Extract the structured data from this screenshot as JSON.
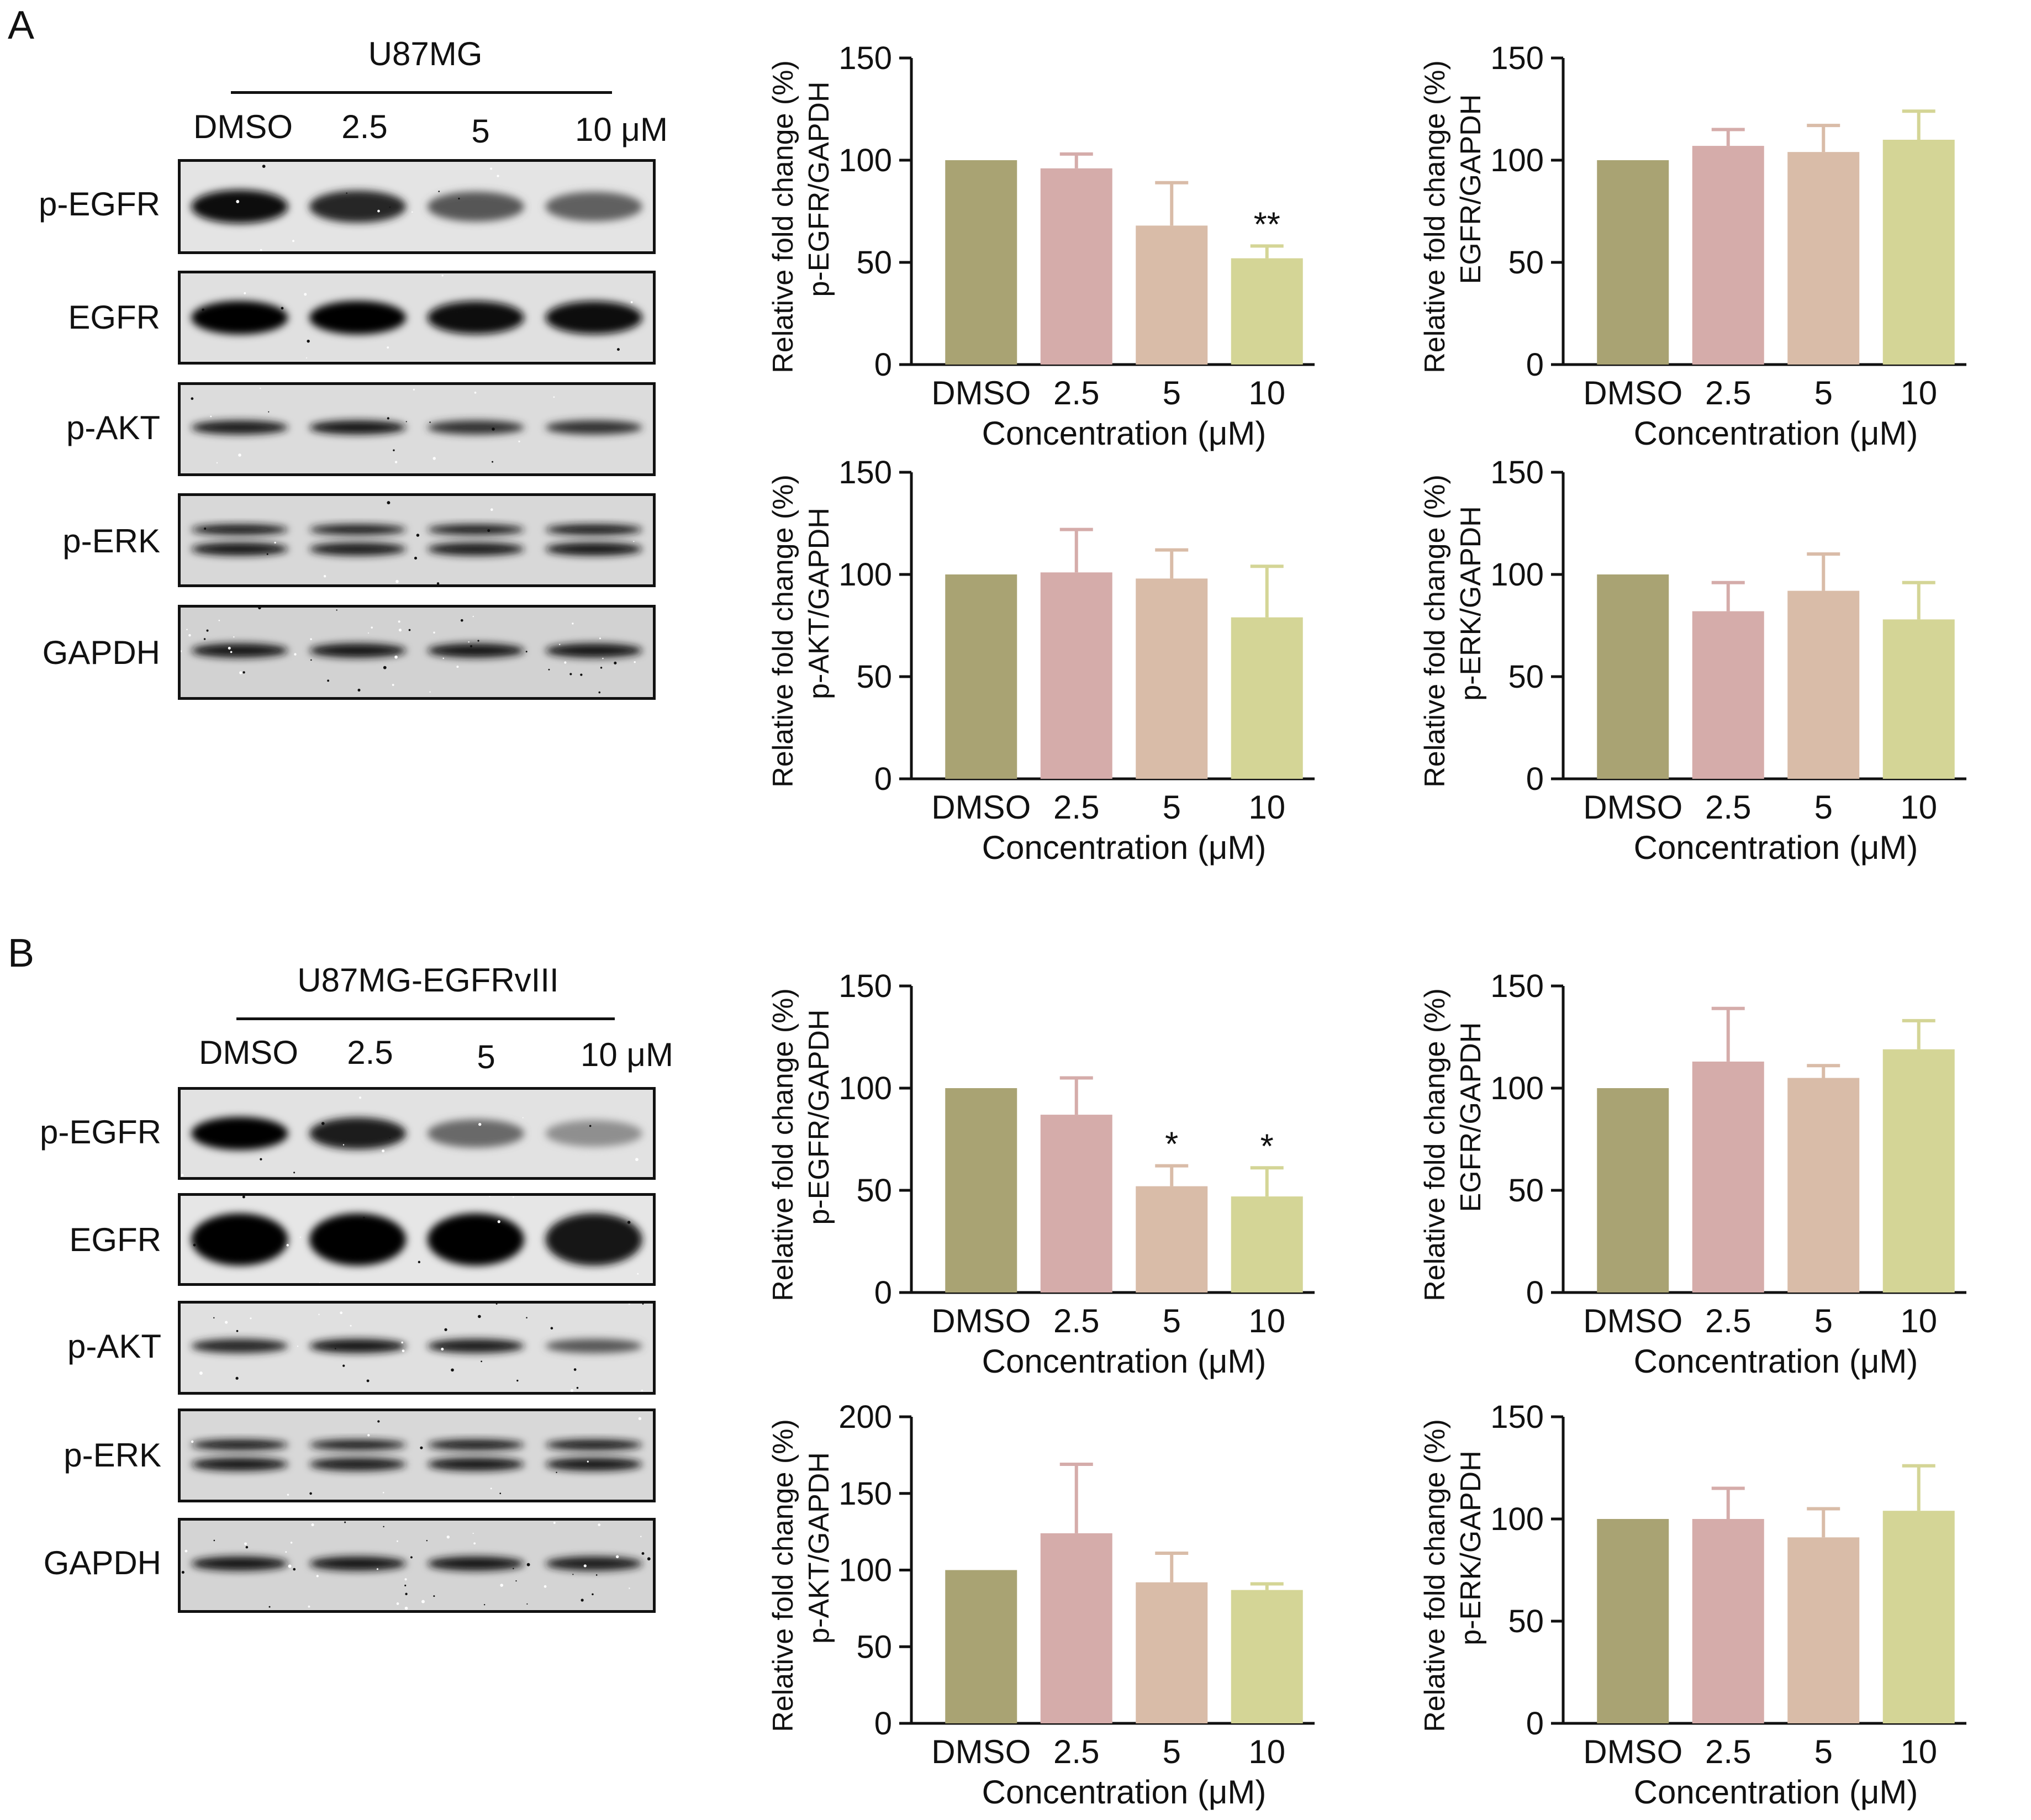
{
  "panels": [
    {
      "letter": "A",
      "cell_line": "U87MG",
      "lanes": [
        "DMSO",
        "2.5",
        "5",
        "10 μM"
      ],
      "blots": [
        {
          "label": "p-EGFR",
          "kind": "single",
          "intensity": [
            0.95,
            0.8,
            0.55,
            0.5
          ],
          "bg": "#e4e4e4",
          "noise": 0.02
        },
        {
          "label": "EGFR",
          "kind": "single",
          "intensity": [
            1.0,
            1.0,
            0.95,
            0.95
          ],
          "bg": "#e0e0e0",
          "noise": 0.02
        },
        {
          "label": "p-AKT",
          "kind": "single-thin",
          "intensity": [
            0.85,
            0.9,
            0.75,
            0.75
          ],
          "bg": "#dcdcdc",
          "noise": 0.03
        },
        {
          "label": "p-ERK",
          "kind": "double",
          "intensity": [
            0.9,
            0.85,
            0.85,
            0.9
          ],
          "bg": "#d8d8d8",
          "noise": 0.02
        },
        {
          "label": "GAPDH",
          "kind": "single-thin",
          "intensity": [
            0.9,
            0.9,
            0.9,
            0.9
          ],
          "bg": "#d2d2d2",
          "noise": 0.08
        }
      ]
    },
    {
      "letter": "B",
      "cell_line": "U87MG-EGFRvIII",
      "lanes": [
        "DMSO",
        "2.5",
        "5",
        "10 μM"
      ],
      "blots": [
        {
          "label": "p-EGFR",
          "kind": "single",
          "intensity": [
            1.0,
            0.85,
            0.45,
            0.25
          ],
          "bg": "#e2e2e2",
          "noise": 0.02
        },
        {
          "label": "EGFR",
          "kind": "blob",
          "intensity": [
            1.0,
            1.0,
            1.0,
            0.9
          ],
          "bg": "#e6e6e6",
          "noise": 0.02
        },
        {
          "label": "p-AKT",
          "kind": "single-thin",
          "intensity": [
            0.8,
            0.9,
            0.85,
            0.55
          ],
          "bg": "#e0e0e0",
          "noise": 0.05
        },
        {
          "label": "p-ERK",
          "kind": "double",
          "intensity": [
            0.9,
            0.85,
            0.9,
            0.9
          ],
          "bg": "#d8d8d8",
          "noise": 0.02
        },
        {
          "label": "GAPDH",
          "kind": "single-thin",
          "intensity": [
            0.9,
            0.9,
            0.9,
            0.85
          ],
          "bg": "#d4d4d4",
          "noise": 0.08
        }
      ]
    }
  ],
  "chart_data": [
    {
      "id": "A-pEGFR",
      "type": "bar",
      "categories": [
        "DMSO",
        "2.5",
        "5",
        "10"
      ],
      "values": [
        100,
        96,
        68,
        52
      ],
      "errors": [
        0,
        7,
        21,
        6
      ],
      "significance": [
        "",
        "",
        "",
        "**"
      ],
      "ylabel": [
        "Relative fold change (%)",
        "p-EGFR/GAPDH"
      ],
      "xlabel": "Concentration (μM)",
      "ylim": [
        0,
        150
      ],
      "yticks": [
        0,
        50,
        100,
        150
      ],
      "colors": [
        "#a9a373",
        "#d5acaa",
        "#d9bca8",
        "#d4d596"
      ]
    },
    {
      "id": "A-EGFR",
      "type": "bar",
      "categories": [
        "DMSO",
        "2.5",
        "5",
        "10"
      ],
      "values": [
        100,
        107,
        104,
        110
      ],
      "errors": [
        0,
        8,
        13,
        14
      ],
      "significance": [
        "",
        "",
        "",
        ""
      ],
      "ylabel": [
        "Relative fold change (%)",
        "EGFR/GAPDH"
      ],
      "xlabel": "Concentration (μM)",
      "ylim": [
        0,
        150
      ],
      "yticks": [
        0,
        50,
        100,
        150
      ],
      "colors": [
        "#a9a373",
        "#d5acaa",
        "#d9bca8",
        "#d4d596"
      ]
    },
    {
      "id": "A-pAKT",
      "type": "bar",
      "categories": [
        "DMSO",
        "2.5",
        "5",
        "10"
      ],
      "values": [
        100,
        101,
        98,
        79
      ],
      "errors": [
        0,
        21,
        14,
        25
      ],
      "significance": [
        "",
        "",
        "",
        ""
      ],
      "ylabel": [
        "Relative fold change (%)",
        "p-AKT/GAPDH"
      ],
      "xlabel": "Concentration (μM)",
      "ylim": [
        0,
        150
      ],
      "yticks": [
        0,
        50,
        100,
        150
      ],
      "colors": [
        "#a9a373",
        "#d5acaa",
        "#d9bca8",
        "#d4d596"
      ]
    },
    {
      "id": "A-pERK",
      "type": "bar",
      "categories": [
        "DMSO",
        "2.5",
        "5",
        "10"
      ],
      "values": [
        100,
        82,
        92,
        78
      ],
      "errors": [
        0,
        14,
        18,
        18
      ],
      "significance": [
        "",
        "",
        "",
        ""
      ],
      "ylabel": [
        "Relative fold change (%)",
        "p-ERK/GAPDH"
      ],
      "xlabel": "Concentration (μM)",
      "ylim": [
        0,
        150
      ],
      "yticks": [
        0,
        50,
        100,
        150
      ],
      "colors": [
        "#a9a373",
        "#d5acaa",
        "#d9bca8",
        "#d4d596"
      ]
    },
    {
      "id": "B-pEGFR",
      "type": "bar",
      "categories": [
        "DMSO",
        "2.5",
        "5",
        "10"
      ],
      "values": [
        100,
        87,
        52,
        47
      ],
      "errors": [
        0,
        18,
        10,
        14
      ],
      "significance": [
        "",
        "",
        "*",
        "*"
      ],
      "ylabel": [
        "Relative fold change (%)",
        "p-EGFR/GAPDH"
      ],
      "xlabel": "Concentration (μM)",
      "ylim": [
        0,
        150
      ],
      "yticks": [
        0,
        50,
        100,
        150
      ],
      "colors": [
        "#a9a373",
        "#d5acaa",
        "#d9bca8",
        "#d4d596"
      ]
    },
    {
      "id": "B-EGFR",
      "type": "bar",
      "categories": [
        "DMSO",
        "2.5",
        "5",
        "10"
      ],
      "values": [
        100,
        113,
        105,
        119
      ],
      "errors": [
        0,
        26,
        6,
        14
      ],
      "significance": [
        "",
        "",
        "",
        ""
      ],
      "ylabel": [
        "Relative fold change (%)",
        "EGFR/GAPDH"
      ],
      "xlabel": "Concentration (μM)",
      "ylim": [
        0,
        150
      ],
      "yticks": [
        0,
        50,
        100,
        150
      ],
      "colors": [
        "#a9a373",
        "#d5acaa",
        "#d9bca8",
        "#d4d596"
      ]
    },
    {
      "id": "B-pAKT",
      "type": "bar",
      "categories": [
        "DMSO",
        "2.5",
        "5",
        "10"
      ],
      "values": [
        100,
        124,
        92,
        87
      ],
      "errors": [
        0,
        45,
        19,
        4
      ],
      "significance": [
        "",
        "",
        "",
        ""
      ],
      "ylabel": [
        "Relative fold change (%)",
        "p-AKT/GAPDH"
      ],
      "xlabel": "Concentration (μM)",
      "ylim": [
        0,
        200
      ],
      "yticks": [
        0,
        50,
        100,
        150,
        200
      ],
      "colors": [
        "#a9a373",
        "#d5acaa",
        "#d9bca8",
        "#d4d596"
      ]
    },
    {
      "id": "B-pERK",
      "type": "bar",
      "categories": [
        "DMSO",
        "2.5",
        "5",
        "10"
      ],
      "values": [
        100,
        100,
        91,
        104
      ],
      "errors": [
        0,
        15,
        14,
        22
      ],
      "significance": [
        "",
        "",
        "",
        ""
      ],
      "ylabel": [
        "Relative fold change (%)",
        "p-ERK/GAPDH"
      ],
      "xlabel": "Concentration (μM)",
      "ylim": [
        0,
        150
      ],
      "yticks": [
        0,
        50,
        100,
        150
      ],
      "colors": [
        "#a9a373",
        "#d5acaa",
        "#d9bca8",
        "#d4d596"
      ]
    }
  ]
}
